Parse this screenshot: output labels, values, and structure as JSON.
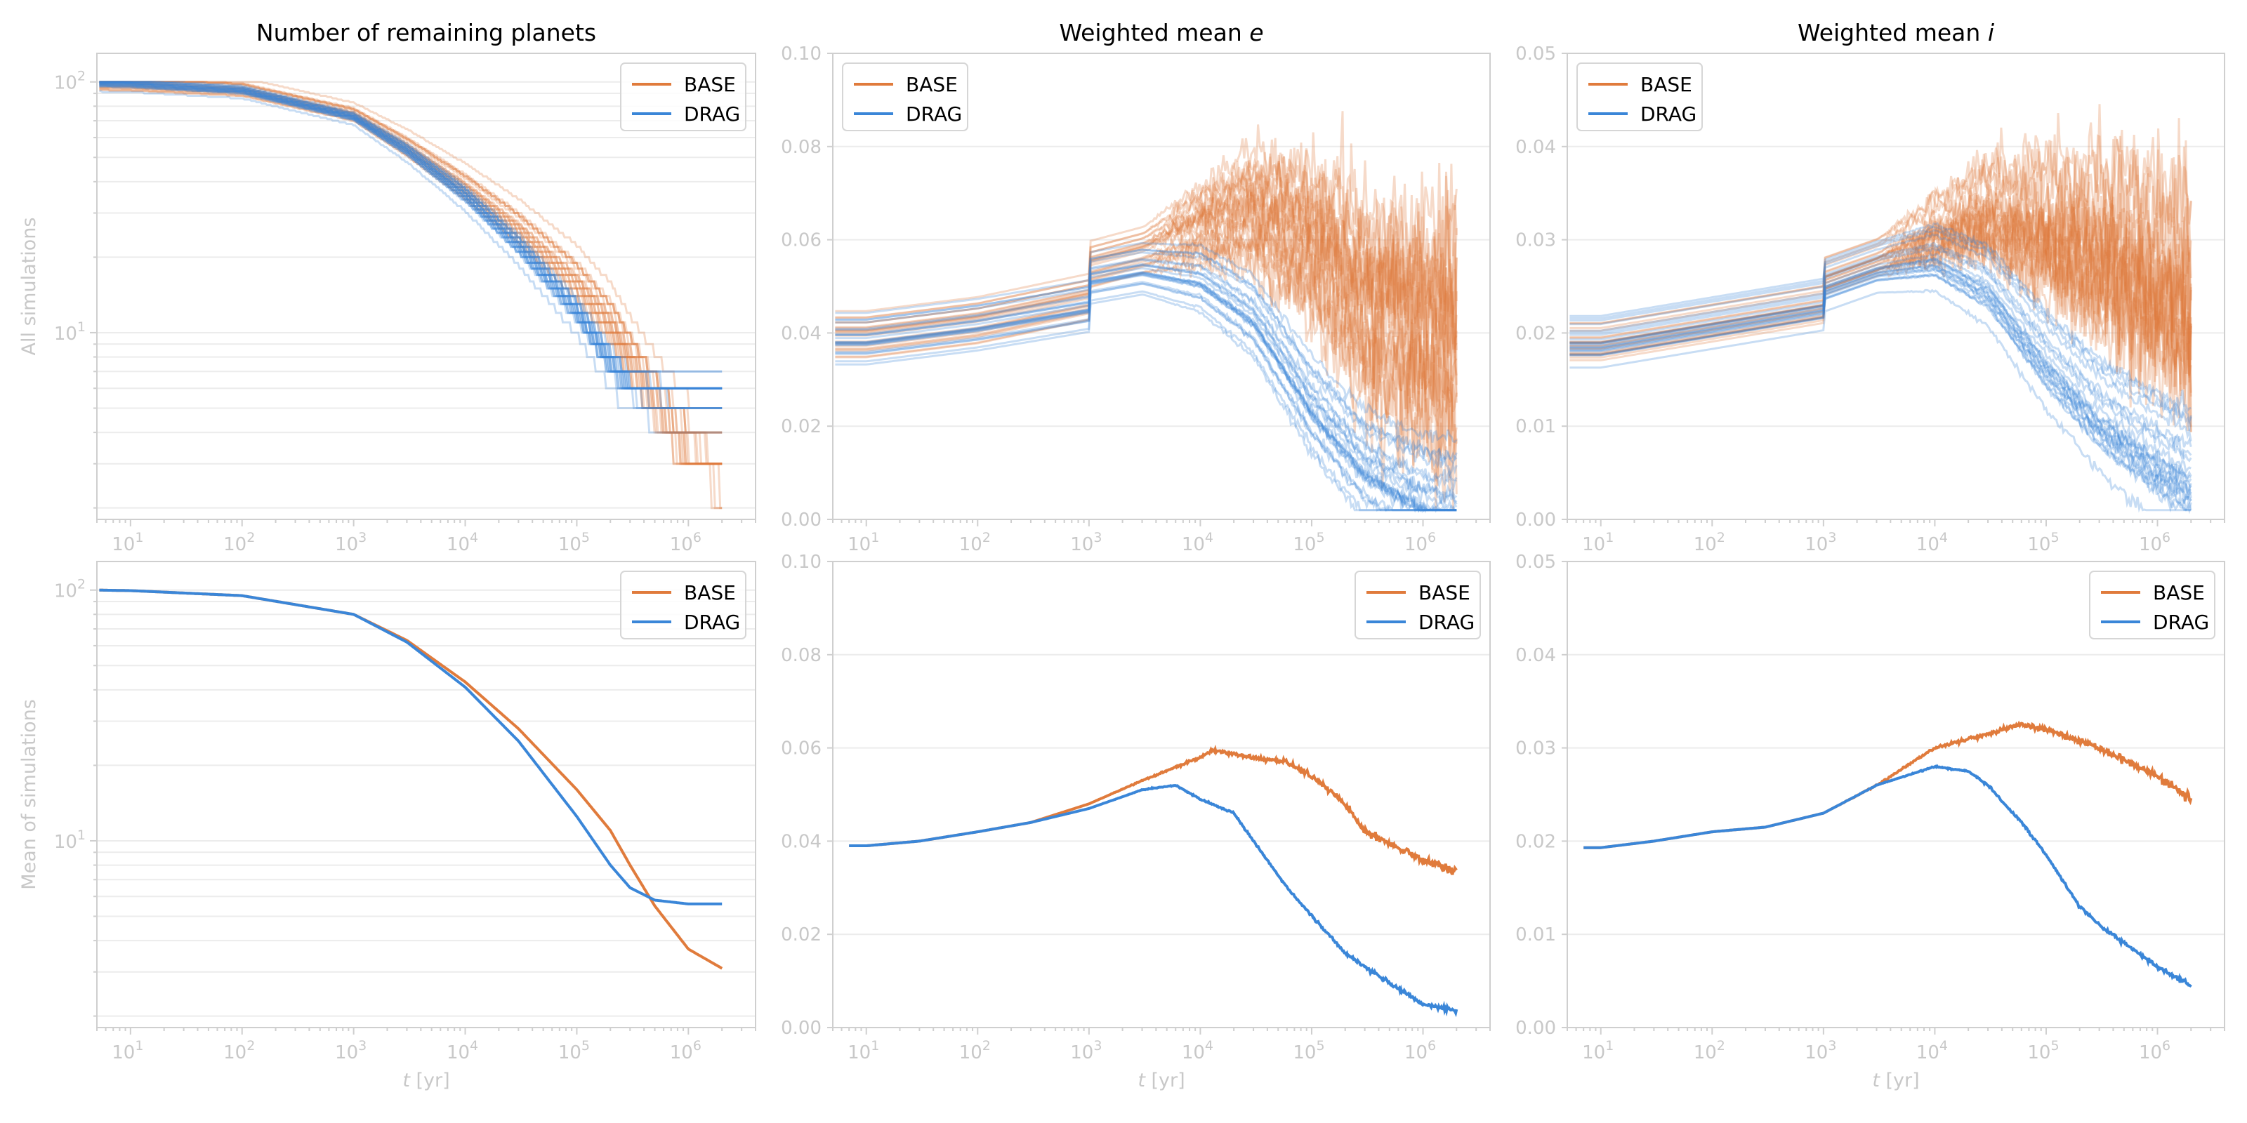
{
  "colors": {
    "BASE": "#e07b3c",
    "DRAG": "#3a86d8"
  },
  "chart_data": [
    {
      "id": "p00",
      "type": "line",
      "title": "Number of remaining planets",
      "ylabel": "All simulations",
      "xlabel": "",
      "xscale": "log",
      "yscale": "log",
      "xlim": [
        5,
        4000000
      ],
      "ylim": [
        1.8,
        130
      ],
      "xticks": [
        "10",
        "10",
        "10",
        "10",
        "10",
        "10"
      ],
      "xtick_exps": [
        "1",
        "2",
        "3",
        "4",
        "5",
        "6"
      ],
      "yticks": [
        "10",
        "10"
      ],
      "ytick_exps": [
        "1",
        "2"
      ],
      "legend": {
        "position": "upper right",
        "entries": [
          "BASE",
          "DRAG"
        ]
      },
      "ensemble": true,
      "series": [
        {
          "name": "BASE",
          "x": [
            5,
            10,
            100,
            1000,
            3000,
            10000,
            30000,
            100000,
            200000,
            300000,
            500000,
            1000000,
            2000000
          ],
          "y": [
            98,
            97.5,
            93,
            74,
            55,
            38,
            26,
            16,
            11,
            8,
            5.5,
            3.5,
            3
          ]
        },
        {
          "name": "DRAG",
          "x": [
            5,
            10,
            100,
            1000,
            3000,
            10000,
            30000,
            100000,
            200000,
            300000,
            500000,
            1000000,
            2000000
          ],
          "y": [
            98,
            97.5,
            92,
            72,
            53,
            35,
            22,
            12,
            7.5,
            6,
            5.7,
            5.6,
            5.6
          ]
        }
      ]
    },
    {
      "id": "p01",
      "type": "line",
      "title": "Weighted mean e",
      "title_text": "Weighted mean ",
      "title_italic": "e",
      "ylabel": "",
      "xlabel": "",
      "xscale": "log",
      "yscale": "linear",
      "xlim": [
        5,
        4000000
      ],
      "ylim": [
        0,
        0.1
      ],
      "xticks": [
        "10",
        "10",
        "10",
        "10",
        "10",
        "10"
      ],
      "xtick_exps": [
        "1",
        "2",
        "3",
        "4",
        "5",
        "6"
      ],
      "yticks": [
        "0.00",
        "0.02",
        "0.04",
        "0.06",
        "0.08",
        "0.10"
      ],
      "legend": {
        "position": "upper left",
        "entries": [
          "BASE",
          "DRAG"
        ]
      },
      "ensemble": true,
      "series": [
        {
          "name": "BASE",
          "x": [
            5,
            10,
            100,
            1000,
            1010,
            3000,
            10000,
            30000,
            100000,
            300000,
            1000000,
            2000000
          ],
          "y": [
            0.039,
            0.039,
            0.042,
            0.047,
            0.054,
            0.057,
            0.062,
            0.065,
            0.058,
            0.045,
            0.038,
            0.035
          ]
        },
        {
          "name": "DRAG",
          "x": [
            5,
            10,
            100,
            1000,
            1010,
            3000,
            10000,
            30000,
            100000,
            300000,
            1000000,
            2000000
          ],
          "y": [
            0.039,
            0.039,
            0.042,
            0.046,
            0.052,
            0.054,
            0.052,
            0.044,
            0.025,
            0.012,
            0.005,
            0.003
          ]
        }
      ]
    },
    {
      "id": "p02",
      "type": "line",
      "title": "Weighted mean i",
      "title_text": "Weighted mean ",
      "title_italic": "i",
      "ylabel": "",
      "xlabel": "",
      "xscale": "log",
      "yscale": "linear",
      "xlim": [
        5,
        4000000
      ],
      "ylim": [
        0,
        0.05
      ],
      "xticks": [
        "10",
        "10",
        "10",
        "10",
        "10",
        "10"
      ],
      "xtick_exps": [
        "1",
        "2",
        "3",
        "4",
        "5",
        "6"
      ],
      "yticks": [
        "0.00",
        "0.01",
        "0.02",
        "0.03",
        "0.04",
        "0.05"
      ],
      "legend": {
        "position": "upper left",
        "entries": [
          "BASE",
          "DRAG"
        ]
      },
      "ensemble": true,
      "series": [
        {
          "name": "BASE",
          "x": [
            5,
            10,
            100,
            1000,
            1010,
            3000,
            10000,
            30000,
            100000,
            300000,
            1000000,
            2000000
          ],
          "y": [
            0.019,
            0.019,
            0.021,
            0.023,
            0.026,
            0.028,
            0.031,
            0.033,
            0.031,
            0.029,
            0.026,
            0.024
          ]
        },
        {
          "name": "DRAG",
          "x": [
            5,
            10,
            100,
            1000,
            1010,
            3000,
            10000,
            30000,
            100000,
            300000,
            1000000,
            2000000
          ],
          "y": [
            0.019,
            0.019,
            0.021,
            0.023,
            0.025,
            0.027,
            0.028,
            0.025,
            0.017,
            0.011,
            0.0065,
            0.0045
          ]
        }
      ]
    },
    {
      "id": "p10",
      "type": "line",
      "title": "",
      "ylabel": "Mean of simulations",
      "xlabel": "t [yr]",
      "xlabel_italic": "t",
      "xlabel_rest": " [yr]",
      "xscale": "log",
      "yscale": "log",
      "xlim": [
        5,
        4000000
      ],
      "ylim": [
        1.8,
        130
      ],
      "xticks": [
        "10",
        "10",
        "10",
        "10",
        "10",
        "10"
      ],
      "xtick_exps": [
        "1",
        "2",
        "3",
        "4",
        "5",
        "6"
      ],
      "yticks": [
        "10",
        "10"
      ],
      "ytick_exps": [
        "1",
        "2"
      ],
      "legend": {
        "position": "upper right",
        "entries": [
          "BASE",
          "DRAG"
        ]
      },
      "ensemble": false,
      "series": [
        {
          "name": "BASE",
          "x": [
            5,
            10,
            100,
            1000,
            3000,
            10000,
            30000,
            100000,
            200000,
            300000,
            500000,
            1000000,
            2000000
          ],
          "y": [
            100,
            99.5,
            95,
            80,
            63,
            43,
            28,
            16,
            11,
            8,
            5.5,
            3.7,
            3.1
          ]
        },
        {
          "name": "DRAG",
          "x": [
            5,
            10,
            100,
            1000,
            3000,
            10000,
            30000,
            100000,
            200000,
            300000,
            500000,
            1000000,
            2000000
          ],
          "y": [
            100,
            99.5,
            95,
            80,
            62,
            41,
            25,
            12.5,
            8,
            6.5,
            5.8,
            5.6,
            5.6
          ]
        }
      ]
    },
    {
      "id": "p11",
      "type": "line",
      "title": "",
      "ylabel": "",
      "xlabel": "t [yr]",
      "xlabel_italic": "t",
      "xlabel_rest": " [yr]",
      "xscale": "log",
      "yscale": "linear",
      "xlim": [
        5,
        4000000
      ],
      "ylim": [
        0,
        0.1
      ],
      "xticks": [
        "10",
        "10",
        "10",
        "10",
        "10",
        "10"
      ],
      "xtick_exps": [
        "1",
        "2",
        "3",
        "4",
        "5",
        "6"
      ],
      "yticks": [
        "0.00",
        "0.02",
        "0.04",
        "0.06",
        "0.08",
        "0.10"
      ],
      "legend": {
        "position": "upper right",
        "entries": [
          "BASE",
          "DRAG"
        ]
      },
      "ensemble": false,
      "series": [
        {
          "name": "BASE",
          "x": [
            7,
            10,
            30,
            100,
            300,
            1000,
            3000,
            10000,
            13000,
            30000,
            60000,
            100000,
            200000,
            300000,
            1000000,
            2000000
          ],
          "y": [
            0.039,
            0.039,
            0.04,
            0.042,
            0.044,
            0.048,
            0.053,
            0.058,
            0.0595,
            0.058,
            0.057,
            0.054,
            0.048,
            0.042,
            0.036,
            0.0335
          ]
        },
        {
          "name": "DRAG",
          "x": [
            7,
            10,
            30,
            100,
            300,
            1000,
            3000,
            6000,
            10000,
            20000,
            30000,
            60000,
            100000,
            200000,
            300000,
            1000000,
            2000000
          ],
          "y": [
            0.039,
            0.039,
            0.04,
            0.042,
            0.044,
            0.047,
            0.051,
            0.052,
            0.049,
            0.046,
            0.04,
            0.03,
            0.024,
            0.016,
            0.013,
            0.005,
            0.0035
          ]
        }
      ]
    },
    {
      "id": "p12",
      "type": "line",
      "title": "",
      "ylabel": "",
      "xlabel": "t [yr]",
      "xlabel_italic": "t",
      "xlabel_rest": " [yr]",
      "xscale": "log",
      "yscale": "linear",
      "xlim": [
        5,
        4000000
      ],
      "ylim": [
        0,
        0.05
      ],
      "xticks": [
        "10",
        "10",
        "10",
        "10",
        "10",
        "10"
      ],
      "xtick_exps": [
        "1",
        "2",
        "3",
        "4",
        "5",
        "6"
      ],
      "yticks": [
        "0.00",
        "0.01",
        "0.02",
        "0.03",
        "0.04",
        "0.05"
      ],
      "legend": {
        "position": "upper right",
        "entries": [
          "BASE",
          "DRAG"
        ]
      },
      "ensemble": false,
      "series": [
        {
          "name": "BASE",
          "x": [
            7,
            10,
            30,
            100,
            300,
            1000,
            3000,
            10000,
            30000,
            60000,
            100000,
            300000,
            1000000,
            2000000
          ],
          "y": [
            0.0193,
            0.0193,
            0.02,
            0.021,
            0.0215,
            0.023,
            0.026,
            0.03,
            0.0315,
            0.0325,
            0.032,
            0.03,
            0.027,
            0.0245
          ]
        },
        {
          "name": "DRAG",
          "x": [
            7,
            10,
            30,
            100,
            300,
            1000,
            3000,
            10000,
            20000,
            30000,
            60000,
            100000,
            200000,
            300000,
            1000000,
            2000000
          ],
          "y": [
            0.0193,
            0.0193,
            0.02,
            0.021,
            0.0215,
            0.023,
            0.026,
            0.028,
            0.0275,
            0.026,
            0.022,
            0.0185,
            0.013,
            0.011,
            0.0065,
            0.0045
          ]
        }
      ]
    }
  ]
}
